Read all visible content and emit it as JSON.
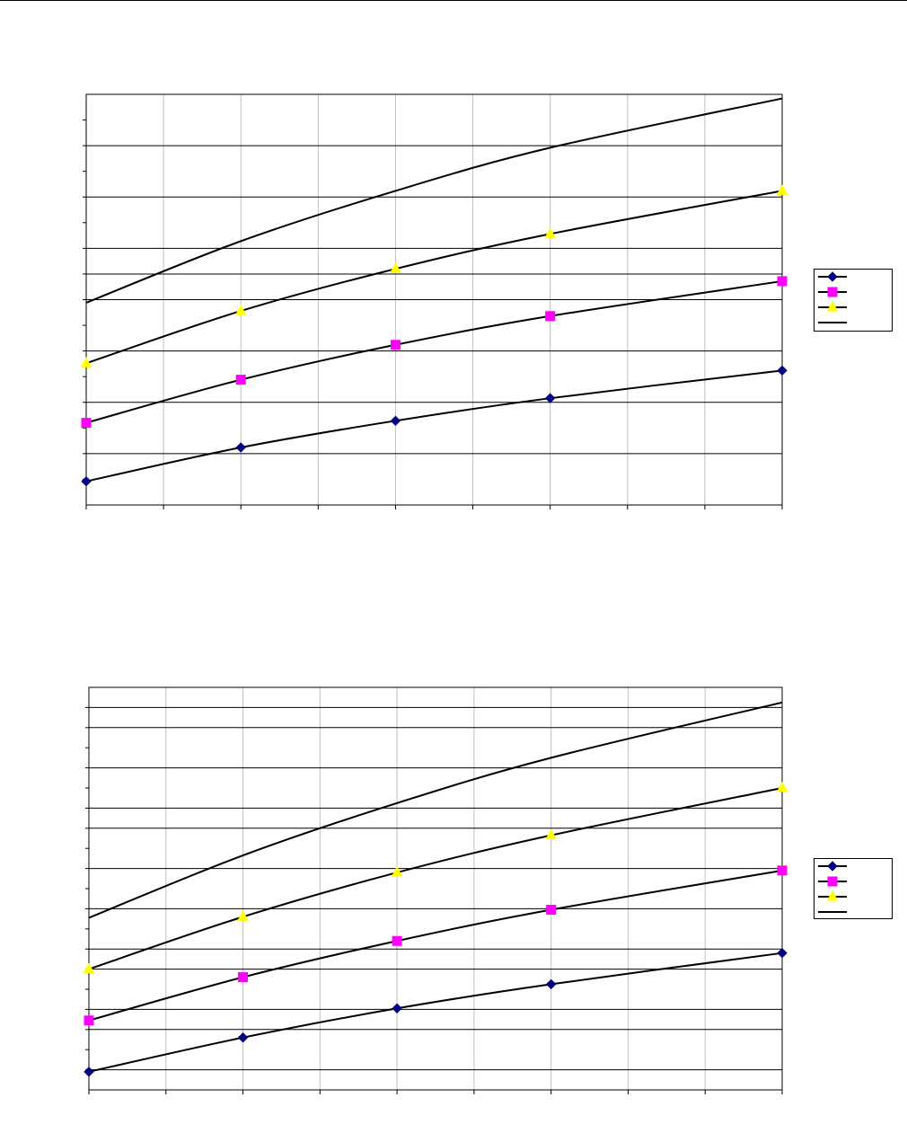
{
  "chart_data": [
    {
      "type": "line",
      "xlim": [
        0,
        4.5
      ],
      "ylim": [
        0,
        4
      ],
      "grid": true,
      "legend_position": "right",
      "x": [
        0,
        1,
        2,
        3,
        4.5
      ],
      "series": [
        {
          "values": [
            0.23,
            0.56,
            0.82,
            1.04,
            1.31
          ],
          "marker": "diamond",
          "color": "#000080"
        },
        {
          "values": [
            0.8,
            1.22,
            1.56,
            1.84,
            2.18
          ],
          "marker": "square",
          "color": "#ff00ff"
        },
        {
          "values": [
            1.38,
            1.89,
            2.3,
            2.64,
            3.06
          ],
          "marker": "triangle",
          "color": "#ffff00"
        },
        {
          "values": [
            1.97,
            2.57,
            3.06,
            3.48,
            3.96
          ],
          "marker": "none",
          "color": "#000000"
        }
      ],
      "colors": {
        "axis": "#000000",
        "major_grid": "#000000",
        "minor_grid": "#c0c0c0"
      }
    },
    {
      "type": "line",
      "xlim": [
        0,
        4.5
      ],
      "ylim": [
        0,
        4
      ],
      "grid": true,
      "legend_position": "right",
      "x": [
        0,
        1,
        2,
        3,
        4.5
      ],
      "series": [
        {
          "values": [
            0.18,
            0.52,
            0.81,
            1.05,
            1.36
          ],
          "marker": "diamond",
          "color": "#000080"
        },
        {
          "values": [
            0.69,
            1.12,
            1.48,
            1.79,
            2.18
          ],
          "marker": "square",
          "color": "#ff00ff"
        },
        {
          "values": [
            1.2,
            1.72,
            2.16,
            2.53,
            3.0
          ],
          "marker": "triangle",
          "color": "#ffff00"
        },
        {
          "values": [
            1.71,
            2.33,
            2.85,
            3.3,
            3.85
          ],
          "marker": "none",
          "color": "#000000"
        }
      ],
      "colors": {
        "axis": "#000000",
        "major_grid": "#000000",
        "minor_grid": "#c0c0c0"
      }
    }
  ]
}
